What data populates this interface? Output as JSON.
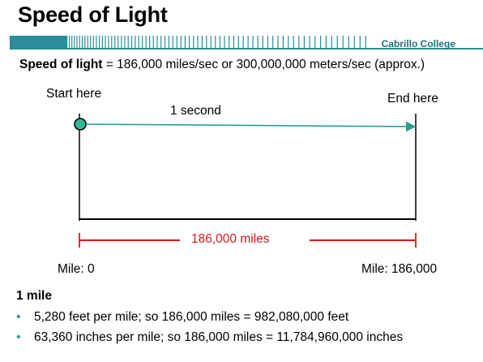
{
  "slide": {
    "title": "Speed of Light",
    "college": "Cabrillo College",
    "speed_label": "Speed of light",
    "speed_text": " = 186,000 miles/sec or 300,000,000 meters/sec (approx.)"
  },
  "diagram": {
    "start_label": "Start here",
    "end_label": "End here",
    "time_label": "1 second",
    "distance_label": "186,000 miles",
    "mile_start_label": "Mile: 0",
    "mile_end_label": "Mile: 186,000",
    "colors": {
      "arrow": "#2aa08f",
      "dot": "#2fb992",
      "distance": "#d11a1a",
      "band": "#2a8d99"
    }
  },
  "notes": {
    "heading": "1 mile",
    "bullets": [
      "5,280 feet per mile; so 186,000 miles = 982,080,000 feet",
      "63,360 inches per mile; so 186,000 miles = 11,784,960,000 inches"
    ]
  }
}
